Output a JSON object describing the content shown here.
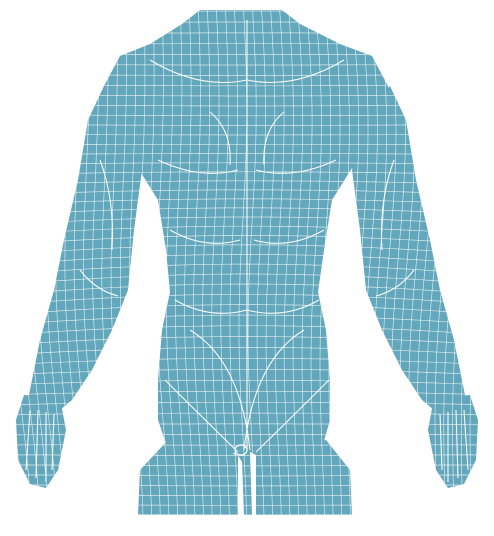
{
  "figure": {
    "subject": "human-back-wireframe-mesh",
    "colors": {
      "fill": "#62a7bc",
      "wire": "#ffffff",
      "background": "#ffffff"
    }
  }
}
